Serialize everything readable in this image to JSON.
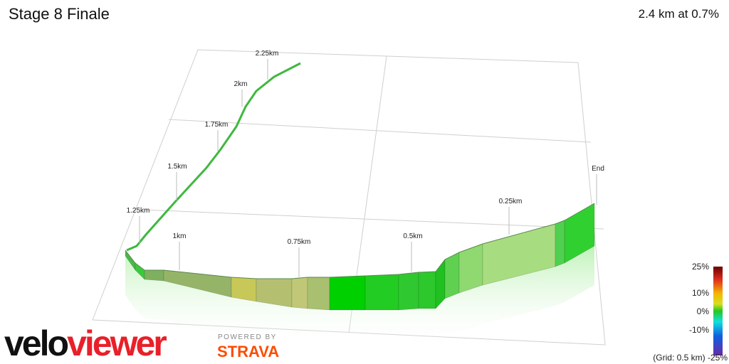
{
  "header": {
    "title": "Stage 8 Finale",
    "summary": "2.4 km at 0.7%"
  },
  "markers": [
    "2.25km",
    "2km",
    "1.75km",
    "1.5km",
    "1.25km",
    "1km",
    "0.75km",
    "0.5km",
    "0.25km",
    "End"
  ],
  "legend": {
    "labels": [
      "25%",
      "10%",
      "0%",
      "-10%"
    ],
    "grid_note": "(Grid: 0.5 km) -25%"
  },
  "logo": {
    "part1": "velo",
    "part2": "viewer",
    "powered": "POWERED BY",
    "strava": "STRAVA"
  }
}
